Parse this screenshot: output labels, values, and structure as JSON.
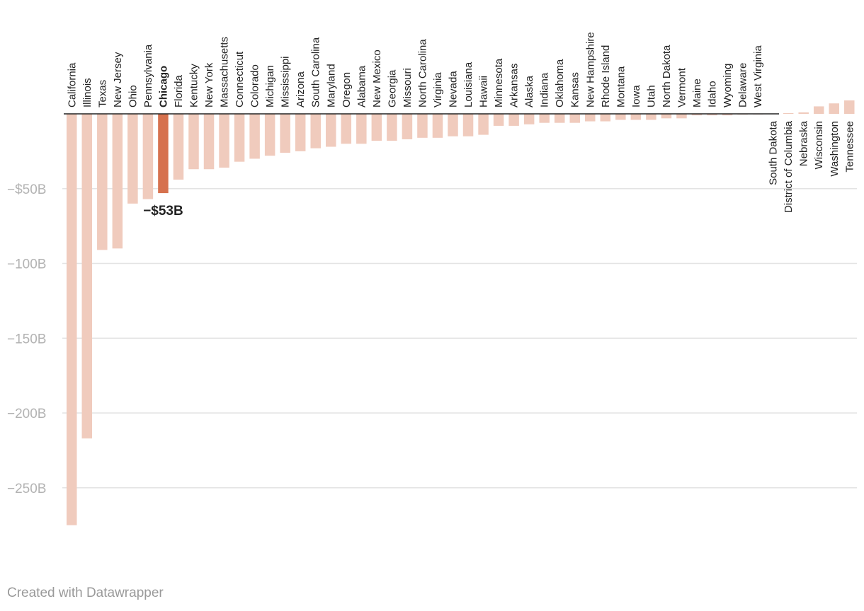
{
  "chart_data": {
    "type": "bar",
    "categories": [
      "California",
      "Illinois",
      "Texas",
      "New Jersey",
      "Ohio",
      "Pennsylvania",
      "Chicago",
      "Florida",
      "Kentucky",
      "New York",
      "Massachusetts",
      "Connecticut",
      "Colorado",
      "Michigan",
      "Mississippi",
      "Arizona",
      "South Carolina",
      "Maryland",
      "Oregon",
      "Alabama",
      "New Mexico",
      "Georgia",
      "Missouri",
      "North Carolina",
      "Virginia",
      "Nevada",
      "Louisiana",
      "Hawaii",
      "Minnesota",
      "Arkansas",
      "Alaska",
      "Indiana",
      "Oklahoma",
      "Kansas",
      "New Hampshire",
      "Rhode Island",
      "Montana",
      "Iowa",
      "Utah",
      "North Dakota",
      "Vermont",
      "Maine",
      "Idaho",
      "Wyoming",
      "Delaware",
      "West Virginia",
      "South Dakota",
      "District of Columbia",
      "Nebraska",
      "Wisconsin",
      "Washington",
      "Tennessee"
    ],
    "values": [
      -275,
      -217,
      -91,
      -90,
      -60,
      -57,
      -53,
      -44,
      -37,
      -37,
      -36,
      -32,
      -30,
      -28,
      -26,
      -25,
      -23,
      -22,
      -20,
      -20,
      -18,
      -18,
      -17,
      -16,
      -16,
      -15,
      -15,
      -14,
      -8,
      -8,
      -7,
      -6,
      -6,
      -6,
      -5,
      -5,
      -4,
      -4,
      -4,
      -3,
      -3,
      -1,
      -1,
      -1,
      -0.5,
      0,
      0.2,
      0.5,
      1,
      5,
      7,
      9
    ],
    "highlight": "Chicago",
    "highlight_label": "−$53B",
    "y_ticks": [
      {
        "value": -50,
        "label": "−$50B"
      },
      {
        "value": -100,
        "label": "−100B"
      },
      {
        "value": -150,
        "label": "−150B"
      },
      {
        "value": -200,
        "label": "−200B"
      },
      {
        "value": -250,
        "label": "−250B"
      }
    ],
    "ylim": [
      -280,
      10
    ],
    "grid": true,
    "colors": {
      "bar": "#f0cbbd",
      "highlight": "#d6714e",
      "grid": "#e3e3e3",
      "baseline": "#222222"
    }
  },
  "footer": {
    "credit": "Created with Datawrapper"
  }
}
